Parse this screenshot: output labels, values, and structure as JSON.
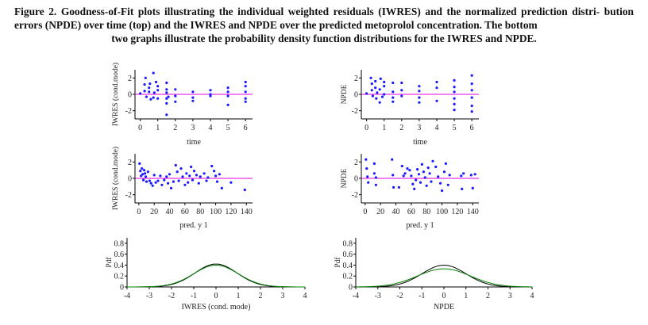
{
  "caption": {
    "line1": "Figure 2. Goodness-of-Fit plots illustrating the individual weighted residuals (IWRES) and the normalized prediction distri-",
    "line2": "bution errors (NPDE) over time (top) and the IWRES and NPDE over the predicted metoprolol concentration. The bottom",
    "line3": "two graphs illustrate the probability density function distributions for the IWRES and NPDE."
  },
  "colors": {
    "points": "#1a1aff",
    "zero_line": "#e000e0",
    "density_1": "#000000",
    "density_2": "#008000"
  },
  "chart_data": [
    {
      "id": "iwres-time",
      "type": "scatter",
      "xlabel": "time",
      "ylabel": "IWRES (cond.mode)",
      "xticks": [
        "0",
        "1",
        "2",
        "3",
        "4",
        "5",
        "6"
      ],
      "yticks": [
        "2",
        "0",
        "-2"
      ],
      "xlim": [
        -0.3,
        6.4
      ],
      "ylim": [
        -3,
        3
      ],
      "points": [
        [
          0,
          0.1
        ],
        [
          0.25,
          0.4
        ],
        [
          0.25,
          1.2
        ],
        [
          0.3,
          2.0
        ],
        [
          0.35,
          -0.3
        ],
        [
          0.5,
          0.8
        ],
        [
          0.5,
          0.3
        ],
        [
          0.55,
          1.3
        ],
        [
          0.6,
          -0.6
        ],
        [
          0.75,
          -0.4
        ],
        [
          0.75,
          2.6
        ],
        [
          0.8,
          0.2
        ],
        [
          0.9,
          1.5
        ],
        [
          1.0,
          0.5
        ],
        [
          1.0,
          1.0
        ],
        [
          1.0,
          -0.5
        ],
        [
          1.5,
          1.4
        ],
        [
          1.5,
          0.6
        ],
        [
          1.5,
          0.2
        ],
        [
          1.5,
          -0.5
        ],
        [
          1.5,
          -1.1
        ],
        [
          1.5,
          -2.5
        ],
        [
          1.6,
          -0.3
        ],
        [
          2.0,
          0.6
        ],
        [
          2.0,
          -0.2
        ],
        [
          2.0,
          -0.9
        ],
        [
          3.0,
          0.3
        ],
        [
          3.0,
          -0.4
        ],
        [
          3.0,
          -0.8
        ],
        [
          4.0,
          0.5
        ],
        [
          4.0,
          0.0
        ],
        [
          4.0,
          -0.2
        ],
        [
          5.0,
          0.8
        ],
        [
          5.0,
          0.3
        ],
        [
          5.0,
          -0.2
        ],
        [
          5.0,
          -1.3
        ],
        [
          6.0,
          1.5
        ],
        [
          6.0,
          1.0
        ],
        [
          6.0,
          0.3
        ],
        [
          6.0,
          -0.5
        ],
        [
          6.0,
          -0.9
        ]
      ]
    },
    {
      "id": "npde-time",
      "type": "scatter",
      "xlabel": "time",
      "ylabel": "NPDE",
      "xticks": [
        "0",
        "1",
        "2",
        "3",
        "4",
        "5",
        "6"
      ],
      "yticks": [
        "2",
        "0",
        "-2"
      ],
      "xlim": [
        -0.3,
        6.4
      ],
      "ylim": [
        -3,
        3
      ],
      "points": [
        [
          0,
          0.1
        ],
        [
          0.25,
          2.0
        ],
        [
          0.3,
          1.3
        ],
        [
          0.3,
          0.5
        ],
        [
          0.35,
          -0.2
        ],
        [
          0.5,
          0.8
        ],
        [
          0.5,
          1.6
        ],
        [
          0.55,
          -0.5
        ],
        [
          0.6,
          0.2
        ],
        [
          0.75,
          -1.0
        ],
        [
          0.75,
          0.6
        ],
        [
          0.8,
          1.9
        ],
        [
          0.9,
          -0.3
        ],
        [
          1.0,
          1.5
        ],
        [
          1.0,
          1.0
        ],
        [
          1.0,
          0.0
        ],
        [
          1.5,
          1.4
        ],
        [
          1.5,
          0.3
        ],
        [
          1.5,
          -0.4
        ],
        [
          1.5,
          -0.9
        ],
        [
          2.0,
          1.4
        ],
        [
          2.0,
          0.5
        ],
        [
          2.0,
          -0.2
        ],
        [
          3.0,
          1.0
        ],
        [
          3.0,
          0.4
        ],
        [
          3.0,
          -0.4
        ],
        [
          3.0,
          -1.0
        ],
        [
          4.0,
          1.5
        ],
        [
          4.0,
          0.8
        ],
        [
          4.0,
          -0.8
        ],
        [
          5.0,
          1.7
        ],
        [
          5.0,
          0.9
        ],
        [
          5.0,
          0.3
        ],
        [
          5.0,
          -0.5
        ],
        [
          5.0,
          -1.2
        ],
        [
          5.0,
          -1.9
        ],
        [
          6.0,
          2.3
        ],
        [
          6.0,
          1.3
        ],
        [
          6.0,
          0.5
        ],
        [
          6.0,
          -0.4
        ],
        [
          6.0,
          -1.4
        ],
        [
          6.0,
          -2.1
        ]
      ]
    },
    {
      "id": "iwres-pred",
      "type": "scatter",
      "xlabel": "pred. y 1",
      "ylabel": "IWRES (cond.mode)",
      "xticks": [
        "0",
        "20",
        "40",
        "60",
        "80",
        "100",
        "120",
        "140"
      ],
      "yticks": [
        "2",
        "0",
        "-2"
      ],
      "xlim": [
        -5,
        148
      ],
      "ylim": [
        -3,
        3
      ],
      "points": [
        [
          1,
          1.8
        ],
        [
          2,
          0.9
        ],
        [
          3,
          0.3
        ],
        [
          4,
          1.2
        ],
        [
          5,
          0.5
        ],
        [
          6,
          -0.2
        ],
        [
          7,
          1.0
        ],
        [
          8,
          0.6
        ],
        [
          9,
          0.2
        ],
        [
          10,
          -0.4
        ],
        [
          12,
          0.8
        ],
        [
          14,
          -0.3
        ],
        [
          16,
          -0.6
        ],
        [
          18,
          -0.9
        ],
        [
          20,
          0.4
        ],
        [
          22,
          -0.5
        ],
        [
          25,
          -0.3
        ],
        [
          28,
          0.3
        ],
        [
          30,
          -0.8
        ],
        [
          33,
          -0.2
        ],
        [
          36,
          0.2
        ],
        [
          38,
          -0.6
        ],
        [
          40,
          0.5
        ],
        [
          42,
          -1.2
        ],
        [
          45,
          -0.4
        ],
        [
          48,
          1.6
        ],
        [
          50,
          0.8
        ],
        [
          52,
          -0.3
        ],
        [
          55,
          1.2
        ],
        [
          57,
          0.2
        ],
        [
          60,
          -0.8
        ],
        [
          62,
          0.6
        ],
        [
          64,
          -0.5
        ],
        [
          66,
          0.3
        ],
        [
          68,
          1.4
        ],
        [
          70,
          -0.2
        ],
        [
          72,
          0.9
        ],
        [
          75,
          0.4
        ],
        [
          78,
          -0.6
        ],
        [
          80,
          0.2
        ],
        [
          85,
          0.6
        ],
        [
          88,
          -0.3
        ],
        [
          90,
          0.1
        ],
        [
          95,
          1.5
        ],
        [
          98,
          0.9
        ],
        [
          100,
          0.3
        ],
        [
          102,
          -0.4
        ],
        [
          105,
          0.5
        ],
        [
          108,
          -1.2
        ],
        [
          120,
          -0.5
        ],
        [
          138,
          -1.4
        ]
      ]
    },
    {
      "id": "npde-pred",
      "type": "scatter",
      "xlabel": "pred. y 1",
      "ylabel": "NPDE",
      "xticks": [
        "0",
        "20",
        "40",
        "60",
        "80",
        "100",
        "120",
        "140"
      ],
      "yticks": [
        "2",
        "0",
        "-2"
      ],
      "xlim": [
        -5,
        148
      ],
      "ylim": [
        -3,
        3
      ],
      "points": [
        [
          1,
          2.3
        ],
        [
          2,
          1.2
        ],
        [
          3,
          0.2
        ],
        [
          4,
          -0.5
        ],
        [
          12,
          1.8
        ],
        [
          12,
          0.6
        ],
        [
          14,
          0.1
        ],
        [
          14,
          -0.8
        ],
        [
          35,
          2.3
        ],
        [
          36,
          0.4
        ],
        [
          37,
          -1.1
        ],
        [
          44,
          -1.1
        ],
        [
          48,
          1.5
        ],
        [
          50,
          0.3
        ],
        [
          52,
          0.6
        ],
        [
          55,
          1.2
        ],
        [
          58,
          1.0
        ],
        [
          60,
          0.3
        ],
        [
          62,
          -0.7
        ],
        [
          64,
          -1.3
        ],
        [
          66,
          -0.2
        ],
        [
          68,
          1.1
        ],
        [
          70,
          0.5
        ],
        [
          72,
          -0.5
        ],
        [
          74,
          1.7
        ],
        [
          76,
          0.8
        ],
        [
          78,
          0.1
        ],
        [
          80,
          -0.9
        ],
        [
          82,
          1.3
        ],
        [
          84,
          0.6
        ],
        [
          86,
          -0.4
        ],
        [
          88,
          2.1
        ],
        [
          92,
          1.4
        ],
        [
          95,
          0.2
        ],
        [
          98,
          -0.6
        ],
        [
          100,
          -1.5
        ],
        [
          103,
          0.8
        ],
        [
          105,
          1.8
        ],
        [
          108,
          -0.8
        ],
        [
          110,
          0.4
        ],
        [
          125,
          0.3
        ],
        [
          126,
          -1.3
        ],
        [
          128,
          0.6
        ],
        [
          138,
          0.4
        ],
        [
          140,
          -1.2
        ],
        [
          143,
          0.5
        ]
      ]
    },
    {
      "id": "iwres-pdf",
      "type": "line",
      "xlabel": "IWRES (cond. mode)",
      "ylabel": "Pdf",
      "xticks": [
        "-4",
        "-3",
        "-2",
        "-1",
        "0",
        "1",
        "2",
        "3",
        "4"
      ],
      "yticks": [
        "0.8",
        "0.6",
        "0.4",
        "0.2",
        "0"
      ],
      "xlim": [
        -4,
        4
      ],
      "ylim": [
        0,
        0.9
      ],
      "series": [
        {
          "color": "#000000",
          "mean": 0.0,
          "sd": 0.95
        },
        {
          "color": "#008000",
          "mean": 0.0,
          "sd": 1.0
        }
      ]
    },
    {
      "id": "npde-pdf",
      "type": "line",
      "xlabel": "NPDE",
      "ylabel": "Pdf",
      "xticks": [
        "-4",
        "-3",
        "-2",
        "-1",
        "0",
        "1",
        "2",
        "3",
        "4"
      ],
      "yticks": [
        "0.8",
        "0.6",
        "0.4",
        "0.2",
        "0"
      ],
      "xlim": [
        -4,
        4
      ],
      "ylim": [
        0,
        0.9
      ],
      "series": [
        {
          "color": "#000000",
          "mean": 0.0,
          "sd": 1.0
        },
        {
          "color": "#008000",
          "mean": 0.0,
          "sd": 1.2
        }
      ]
    }
  ]
}
